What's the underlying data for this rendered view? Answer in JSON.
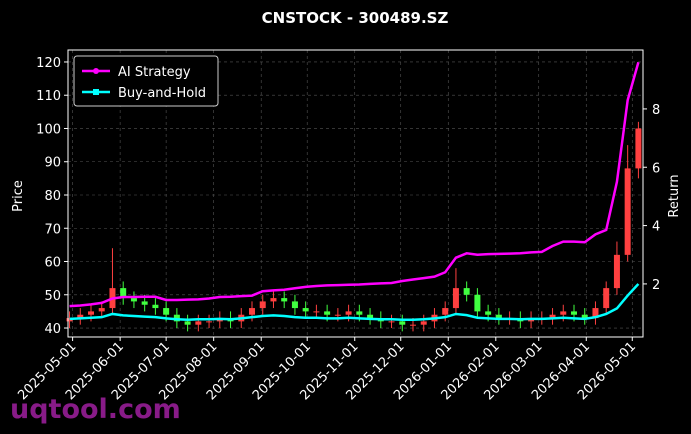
{
  "chart_data": {
    "type": "candlestick",
    "title": "CNSTOCK - 300489.SZ",
    "ylabel": "Price",
    "y2label": "Return",
    "watermark": "uqtool.com",
    "x": [
      "2025-04-29",
      "2025-05-06",
      "2025-05-13",
      "2025-05-20",
      "2025-05-27",
      "2025-06-03",
      "2025-06-10",
      "2025-06-17",
      "2025-06-24",
      "2025-07-01",
      "2025-07-08",
      "2025-07-15",
      "2025-07-22",
      "2025-07-29",
      "2025-08-05",
      "2025-08-12",
      "2025-08-19",
      "2025-08-26",
      "2025-09-02",
      "2025-09-09",
      "2025-09-16",
      "2025-09-23",
      "2025-09-30",
      "2025-10-07",
      "2025-10-14",
      "2025-10-21",
      "2025-10-28",
      "2025-11-04",
      "2025-11-11",
      "2025-11-18",
      "2025-11-25",
      "2025-12-02",
      "2025-12-09",
      "2025-12-16",
      "2025-12-23",
      "2025-12-30",
      "2026-01-06",
      "2026-01-13",
      "2026-01-20",
      "2026-01-27",
      "2026-02-03",
      "2026-02-10",
      "2026-02-17",
      "2026-02-24",
      "2026-03-03",
      "2026-03-10",
      "2026-03-17",
      "2026-03-24",
      "2026-03-31",
      "2026-04-07",
      "2026-04-14",
      "2026-04-21",
      "2026-04-28",
      "2026-05-05"
    ],
    "open": [
      42,
      43,
      44,
      45,
      46,
      52,
      49,
      48,
      47,
      46,
      44,
      42,
      41,
      42,
      42,
      43,
      42,
      44,
      46,
      48,
      49,
      48,
      46,
      45,
      45,
      44,
      44,
      45,
      44,
      43,
      42,
      42,
      41,
      41,
      42,
      44,
      46,
      52,
      50,
      45,
      44,
      43,
      43,
      42,
      43,
      43,
      44,
      45,
      44,
      43,
      46,
      52,
      62,
      88
    ],
    "high": [
      45,
      46,
      47,
      48,
      64,
      54,
      51,
      50,
      49,
      48,
      46,
      44,
      44,
      44,
      45,
      45,
      46,
      48,
      50,
      51,
      51,
      50,
      48,
      47,
      47,
      46,
      47,
      47,
      46,
      45,
      44,
      44,
      43,
      44,
      46,
      48,
      58,
      54,
      52,
      47,
      46,
      45,
      45,
      45,
      45,
      46,
      47,
      47,
      46,
      48,
      54,
      66,
      95,
      102
    ],
    "low": [
      40,
      41,
      42,
      43,
      44,
      47,
      46,
      45,
      44,
      42,
      40,
      39,
      39,
      40,
      40,
      40,
      40,
      42,
      44,
      46,
      46,
      44,
      43,
      43,
      42,
      42,
      42,
      42,
      41,
      40,
      40,
      39,
      39,
      39,
      40,
      42,
      44,
      48,
      43,
      42,
      41,
      41,
      40,
      40,
      41,
      41,
      42,
      42,
      41,
      41,
      44,
      50,
      60,
      85
    ],
    "close": [
      43,
      44,
      45,
      46,
      52,
      49,
      48,
      47,
      46,
      44,
      42,
      41,
      42,
      42,
      43,
      42,
      44,
      46,
      48,
      49,
      48,
      46,
      45,
      45,
      44,
      44,
      45,
      44,
      43,
      42,
      42,
      41,
      41,
      42,
      44,
      46,
      52,
      50,
      45,
      44,
      43,
      43,
      42,
      43,
      43,
      44,
      45,
      44,
      43,
      46,
      52,
      62,
      88,
      100
    ],
    "up_color": "#ff4040",
    "down_color": "#40ff40",
    "series": [
      {
        "name": "AI Strategy",
        "color": "#ff00ff",
        "axis": "y2",
        "marker": "circle",
        "values": [
          1.24,
          1.26,
          1.3,
          1.35,
          1.5,
          1.55,
          1.55,
          1.56,
          1.56,
          1.45,
          1.45,
          1.46,
          1.47,
          1.5,
          1.55,
          1.56,
          1.58,
          1.6,
          1.75,
          1.78,
          1.8,
          1.85,
          1.9,
          1.93,
          1.95,
          1.96,
          1.97,
          1.98,
          2.0,
          2.02,
          2.03,
          2.1,
          2.15,
          2.2,
          2.25,
          2.4,
          2.9,
          3.05,
          3.0,
          3.02,
          3.03,
          3.04,
          3.05,
          3.08,
          3.1,
          3.3,
          3.45,
          3.45,
          3.43,
          3.7,
          3.85,
          5.5,
          8.3,
          9.6
        ]
      },
      {
        "name": "Buy-and-Hold",
        "color": "#00ffff",
        "axis": "y2",
        "marker": "square",
        "values": [
          0.8,
          0.82,
          0.84,
          0.86,
          0.97,
          0.92,
          0.9,
          0.88,
          0.86,
          0.82,
          0.79,
          0.77,
          0.79,
          0.79,
          0.8,
          0.79,
          0.82,
          0.86,
          0.9,
          0.92,
          0.9,
          0.86,
          0.84,
          0.84,
          0.82,
          0.82,
          0.84,
          0.82,
          0.8,
          0.79,
          0.79,
          0.77,
          0.77,
          0.79,
          0.82,
          0.86,
          0.97,
          0.93,
          0.84,
          0.82,
          0.8,
          0.8,
          0.79,
          0.8,
          0.8,
          0.82,
          0.84,
          0.82,
          0.8,
          0.86,
          0.97,
          1.16,
          1.6,
          2.0
        ]
      }
    ],
    "xlim": [
      "2025-04-28",
      "2026-05-08"
    ],
    "xticks": [
      "2025-05-01",
      "2025-06-01",
      "2025-07-01",
      "2025-08-01",
      "2025-09-01",
      "2025-10-01",
      "2025-11-01",
      "2025-12-01",
      "2026-01-01",
      "2026-02-01",
      "2026-03-01",
      "2026-04-01",
      "2026-05-01"
    ],
    "ylim": [
      37.3,
      123.6
    ],
    "yticks": [
      40,
      50,
      60,
      70,
      80,
      90,
      100,
      110,
      120
    ],
    "y2lim": [
      0.18,
      10.02
    ],
    "y2ticks": [
      2,
      4,
      6,
      8
    ],
    "grid": true,
    "legend": "upper left"
  }
}
